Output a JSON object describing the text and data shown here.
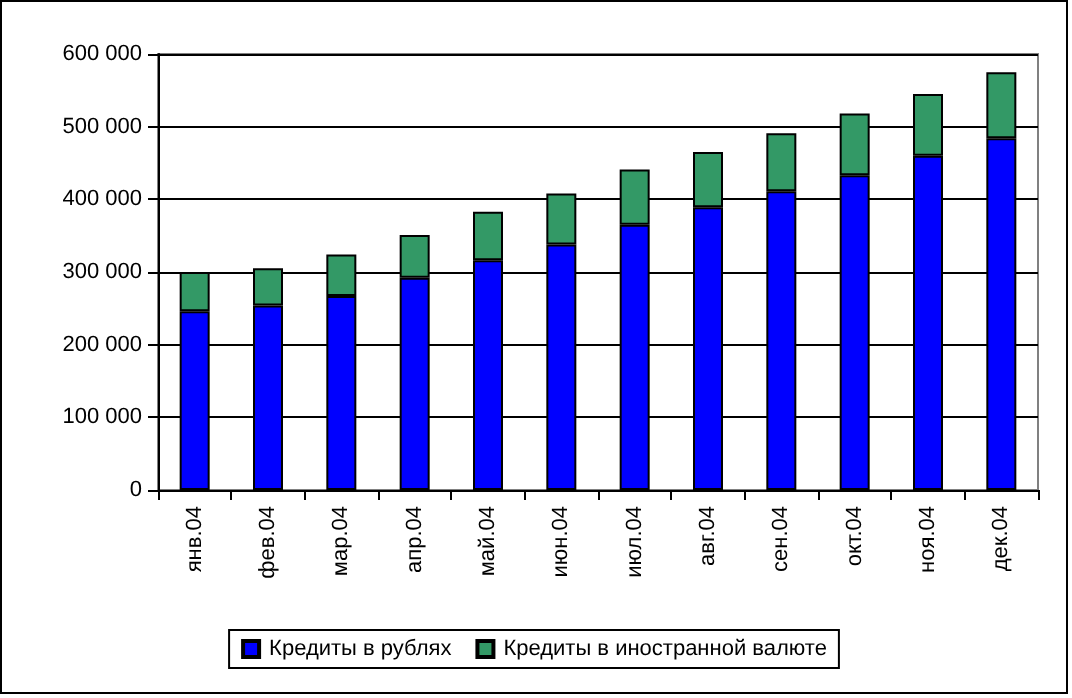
{
  "chart_data": {
    "type": "bar",
    "stacked": true,
    "categories": [
      "янв.04",
      "фев.04",
      "мар.04",
      "апр.04",
      "май.04",
      "июн.04",
      "июл.04",
      "авг.04",
      "сен.04",
      "окт.04",
      "ноя.04",
      "дек.04"
    ],
    "series": [
      {
        "name": "Кредиты в рублях",
        "color": "#0000ff",
        "values": [
          246000,
          254000,
          267000,
          292000,
          316000,
          338000,
          365000,
          389000,
          411000,
          433000,
          460000,
          484000
        ]
      },
      {
        "name": "Кредиты в иностранной валюте",
        "color": "#339966",
        "values": [
          54000,
          51000,
          57000,
          59000,
          67000,
          70000,
          76000,
          76000,
          80000,
          85000,
          85000,
          91000
        ]
      }
    ],
    "ylim": [
      0,
      600000
    ],
    "yticks": [
      0,
      {
        "value": 100000,
        "label": "100 000"
      },
      {
        "value": 200000,
        "label": "200 000"
      },
      {
        "value": 300000,
        "label": "300 000"
      },
      {
        "value": 400000,
        "label": "400 000"
      },
      {
        "value": 500000,
        "label": "500 000"
      },
      {
        "value": 600000,
        "label": "600 000"
      }
    ],
    "grid": "y",
    "legend": "bottom"
  }
}
